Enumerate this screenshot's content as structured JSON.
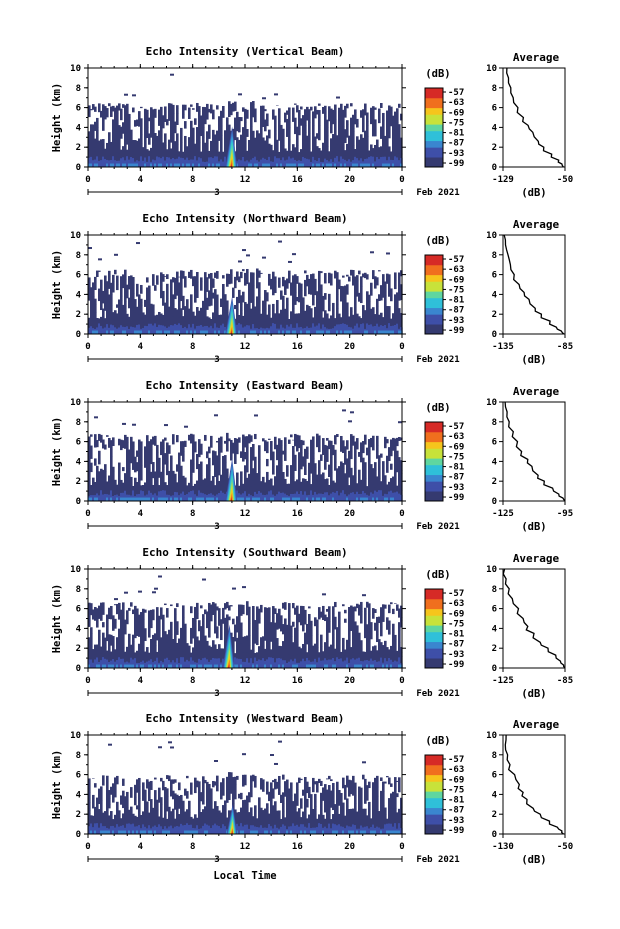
{
  "page_bg": "#ffffff",
  "x_label": "Local Time",
  "date_label": "Feb 2021",
  "day_label": "3",
  "colorbar_unit": "(dB)",
  "colorbar_ticks": [
    "-57",
    "-63",
    "-69",
    "-75",
    "-81",
    "-87",
    "-93",
    "-99"
  ],
  "colormap": [
    "#353a70",
    "#3e4fa8",
    "#3a86cf",
    "#2fc0d9",
    "#5fd6a0",
    "#c8e23a",
    "#f6c51c",
    "#f06f1e",
    "#d62a26"
  ],
  "chart_data": [
    {
      "type": "heatmap",
      "title": "Echo Intensity (Vertical Beam)",
      "ylabel": "Height (km)",
      "xlim": [
        0,
        24
      ],
      "ylim": [
        0,
        10
      ],
      "xticks": [
        "0",
        "4",
        "8",
        "12",
        "16",
        "20",
        "0"
      ],
      "yticks": [
        "0",
        "2",
        "4",
        "6",
        "8",
        "10"
      ],
      "echo_top_km": 6.1,
      "convective_burst": {
        "start_h": 10.5,
        "end_h": 11.4,
        "top_km": 4.1
      },
      "profile": {
        "title": "Average",
        "xlabel": "(dB)",
        "xticks": [
          "-129",
          "-50"
        ],
        "x": [
          -124,
          -122,
          -119,
          -116,
          -110,
          -103,
          -97,
          -91,
          -84,
          -77,
          -67,
          -58,
          -54,
          -52
        ],
        "y": [
          10,
          9,
          8,
          7,
          6,
          5,
          4.2,
          3.5,
          2.6,
          2.0,
          1.3,
          0.7,
          0.3,
          0
        ]
      }
    },
    {
      "type": "heatmap",
      "title": "Echo Intensity (Northward Beam)",
      "ylabel": "Height (km)",
      "xlim": [
        0,
        24
      ],
      "ylim": [
        0,
        10
      ],
      "xticks": [
        "0",
        "4",
        "8",
        "12",
        "16",
        "20",
        "0"
      ],
      "yticks": [
        "0",
        "2",
        "4",
        "6",
        "8",
        "10"
      ],
      "echo_top_km": 6.1,
      "convective_burst": {
        "start_h": 10.5,
        "end_h": 11.4,
        "top_km": 3.8
      },
      "profile": {
        "title": "Average",
        "xlabel": "(dB)",
        "xticks": [
          "-135",
          "-85"
        ],
        "x": [
          -134,
          -133,
          -131,
          -129,
          -126,
          -122,
          -118,
          -114,
          -109,
          -104,
          -97,
          -92,
          -88,
          -86
        ],
        "y": [
          10,
          9,
          8,
          7,
          6,
          5,
          4.2,
          3.5,
          2.6,
          2.0,
          1.3,
          0.7,
          0.3,
          0
        ]
      }
    },
    {
      "type": "heatmap",
      "title": "Echo Intensity (Eastward Beam)",
      "ylabel": "Height (km)",
      "xlim": [
        0,
        24
      ],
      "ylim": [
        0,
        10
      ],
      "xticks": [
        "0",
        "4",
        "8",
        "12",
        "16",
        "20",
        "0"
      ],
      "yticks": [
        "0",
        "2",
        "4",
        "6",
        "8",
        "10"
      ],
      "echo_top_km": 6.4,
      "convective_burst": {
        "start_h": 10.5,
        "end_h": 11.4,
        "top_km": 4.3
      },
      "profile": {
        "title": "Average",
        "xlabel": "(dB)",
        "xticks": [
          "-125",
          "-95"
        ],
        "x": [
          -124,
          -123,
          -122,
          -120,
          -118,
          -116,
          -113,
          -111,
          -108,
          -105,
          -101,
          -98,
          -96,
          -95
        ],
        "y": [
          10,
          9,
          8,
          7,
          6,
          5,
          4.2,
          3.5,
          2.6,
          2.0,
          1.3,
          0.7,
          0.3,
          0
        ]
      }
    },
    {
      "type": "heatmap",
      "title": "Echo Intensity (Southward Beam)",
      "ylabel": "Height (km)",
      "xlim": [
        0,
        24
      ],
      "ylim": [
        0,
        10
      ],
      "xticks": [
        "0",
        "4",
        "8",
        "12",
        "16",
        "20",
        "0"
      ],
      "yticks": [
        "0",
        "2",
        "4",
        "6",
        "8",
        "10"
      ],
      "echo_top_km": 6.3,
      "convective_burst": {
        "start_h": 10.3,
        "end_h": 11.2,
        "top_km": 4.4
      },
      "profile": {
        "title": "Average",
        "xlabel": "(dB)",
        "xticks": [
          "-125",
          "-85"
        ],
        "x": [
          -124,
          -123,
          -121,
          -119,
          -115,
          -112,
          -109,
          -105,
          -101,
          -96,
          -91,
          -88,
          -86,
          -85
        ],
        "y": [
          10,
          9,
          8,
          7,
          6,
          5,
          4.2,
          3.5,
          2.6,
          2.0,
          1.3,
          0.7,
          0.3,
          0
        ]
      }
    },
    {
      "type": "heatmap",
      "title": "Echo Intensity (Westward Beam)",
      "ylabel": "Height (km)",
      "xlim": [
        0,
        24
      ],
      "ylim": [
        0,
        10
      ],
      "xticks": [
        "0",
        "4",
        "8",
        "12",
        "16",
        "20",
        "0"
      ],
      "yticks": [
        "0",
        "2",
        "4",
        "6",
        "8",
        "10"
      ],
      "echo_top_km": 5.6,
      "convective_burst": {
        "start_h": 10.6,
        "end_h": 11.4,
        "top_km": 3.0
      },
      "profile": {
        "title": "Average",
        "xlabel": "(dB)",
        "xticks": [
          "-130",
          "-50"
        ],
        "x": [
          -126,
          -127,
          -124,
          -121,
          -115,
          -109,
          -104,
          -99,
          -91,
          -82,
          -70,
          -60,
          -54,
          -52
        ],
        "y": [
          10,
          9,
          8,
          7,
          6,
          5,
          4.2,
          3.5,
          2.6,
          2.0,
          1.3,
          0.7,
          0.3,
          0
        ]
      }
    }
  ]
}
